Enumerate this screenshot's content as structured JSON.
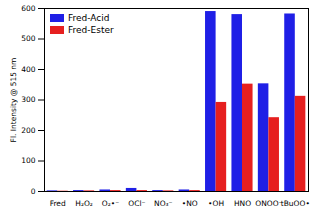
{
  "chart_data": {
    "type": "bar",
    "y_label": "Fl. Intensity @ 515 nm",
    "categories": [
      "Fred",
      "H₂O₂",
      "O₂•⁻",
      "OCl⁻",
      "NO₃⁻",
      "•NO",
      "•OH",
      "HNO",
      "ONOO⁻",
      "tBuOO•"
    ],
    "series": [
      {
        "name": "Fred-Acid",
        "color": "#1f1fe6",
        "values": [
          2,
          3,
          5,
          10,
          3,
          5,
          590,
          580,
          353,
          582
        ]
      },
      {
        "name": "Fred-Ester",
        "color": "#e61f1f",
        "values": [
          1,
          2,
          3,
          3,
          2,
          3,
          292,
          352,
          242,
          312
        ]
      }
    ],
    "ylim": [
      0,
      600
    ],
    "yticks": [
      0,
      100,
      200,
      300,
      400,
      500,
      600
    ],
    "legend": "top-left"
  }
}
